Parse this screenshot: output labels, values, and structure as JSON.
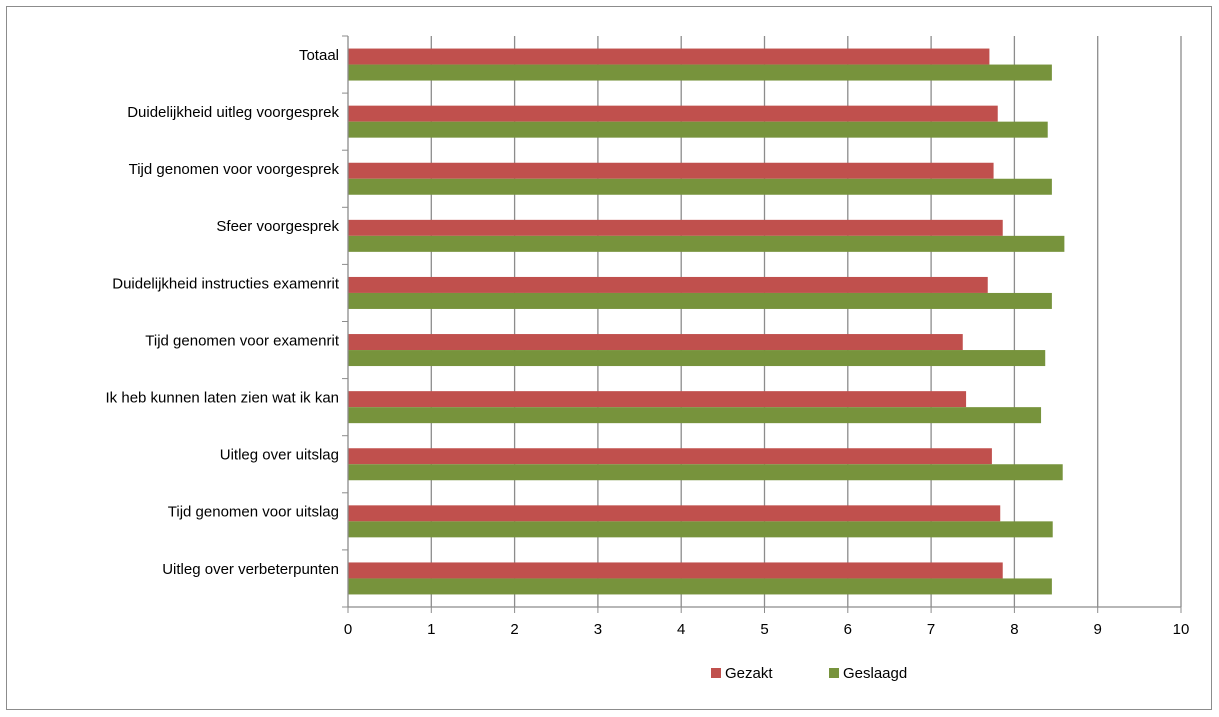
{
  "chart_data": {
    "type": "bar",
    "orientation": "horizontal",
    "categories": [
      "Totaal",
      "Duidelijkheid uitleg voorgesprek",
      "Tijd genomen voor voorgesprek",
      "Sfeer voorgesprek",
      "Duidelijkheid instructies examenrit",
      "Tijd genomen voor examenrit",
      "Ik heb kunnen laten zien wat ik kan",
      "Uitleg over uitslag",
      "Tijd genomen voor uitslag",
      "Uitleg over verbeterpunten"
    ],
    "series": [
      {
        "name": "Gezakt",
        "color": "#c0504d",
        "values": [
          7.7,
          7.8,
          7.75,
          7.86,
          7.68,
          7.38,
          7.42,
          7.73,
          7.83,
          7.86
        ]
      },
      {
        "name": "Geslaagd",
        "color": "#77933c",
        "values": [
          8.45,
          8.4,
          8.45,
          8.6,
          8.45,
          8.37,
          8.32,
          8.58,
          8.46,
          8.45
        ]
      }
    ],
    "xlim": [
      0,
      10
    ],
    "xticks": [
      0,
      1,
      2,
      3,
      4,
      5,
      6,
      7,
      8,
      9,
      10
    ],
    "grid": "vertical",
    "legend": "bottom"
  }
}
